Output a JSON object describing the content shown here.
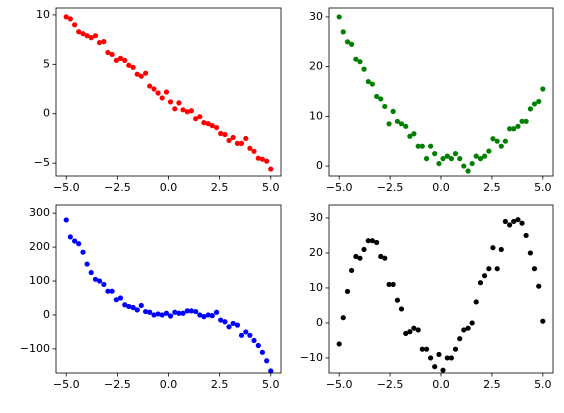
{
  "chart_data": [
    {
      "type": "scatter",
      "color": "#ff0000",
      "x": [
        -5.0,
        -4.8,
        -4.59,
        -4.39,
        -4.18,
        -3.98,
        -3.78,
        -3.57,
        -3.37,
        -3.16,
        -2.96,
        -2.76,
        -2.55,
        -2.35,
        -2.14,
        -1.94,
        -1.73,
        -1.53,
        -1.33,
        -1.12,
        -0.92,
        -0.71,
        -0.51,
        -0.31,
        -0.1,
        0.1,
        0.31,
        0.51,
        0.71,
        0.92,
        1.12,
        1.33,
        1.53,
        1.73,
        1.94,
        2.14,
        2.35,
        2.55,
        2.76,
        2.96,
        3.16,
        3.37,
        3.57,
        3.78,
        3.98,
        4.18,
        4.39,
        4.59,
        4.8,
        5.0
      ],
      "values": [
        9.8,
        9.6,
        9.0,
        8.3,
        8.1,
        7.9,
        7.7,
        7.9,
        7.2,
        7.3,
        6.2,
        6.0,
        5.4,
        5.6,
        5.4,
        4.9,
        4.7,
        4.0,
        3.8,
        4.1,
        2.8,
        2.5,
        2.1,
        1.6,
        2.2,
        1.2,
        0.5,
        1.1,
        0.4,
        0.2,
        0.3,
        -0.5,
        -0.3,
        -0.9,
        -1.0,
        -1.2,
        -1.4,
        -2.0,
        -2.1,
        -2.7,
        -2.4,
        -3.0,
        -3.0,
        -2.5,
        -3.5,
        -3.8,
        -4.5,
        -4.6,
        -4.8,
        -5.6
      ],
      "xlim": [
        -5.5,
        5.5
      ],
      "ylim": [
        -6.3,
        10.7
      ],
      "xticks": [
        {
          "value": -5,
          "label": "−5.0"
        },
        {
          "value": -2.5,
          "label": "−2.5"
        },
        {
          "value": 0,
          "label": "0.0"
        },
        {
          "value": 2.5,
          "label": "2.5"
        },
        {
          "value": 5,
          "label": "5.0"
        }
      ],
      "yticks": [
        {
          "value": -5,
          "label": "−5"
        },
        0,
        5,
        10
      ]
    },
    {
      "type": "scatter",
      "color": "#008000",
      "x": [
        -5.0,
        -4.8,
        -4.59,
        -4.39,
        -4.18,
        -3.98,
        -3.78,
        -3.57,
        -3.37,
        -3.16,
        -2.96,
        -2.76,
        -2.55,
        -2.35,
        -2.14,
        -1.94,
        -1.73,
        -1.53,
        -1.33,
        -1.12,
        -0.92,
        -0.71,
        -0.51,
        -0.31,
        -0.1,
        0.1,
        0.31,
        0.51,
        0.71,
        0.92,
        1.12,
        1.33,
        1.53,
        1.73,
        1.94,
        2.14,
        2.35,
        2.55,
        2.76,
        2.96,
        3.16,
        3.37,
        3.57,
        3.78,
        3.98,
        4.18,
        4.39,
        4.59,
        4.8,
        5.0
      ],
      "values": [
        30,
        27,
        25,
        24.5,
        21.5,
        21,
        19.5,
        17,
        16.5,
        14,
        13.5,
        12,
        8.5,
        11,
        9,
        8.5,
        8,
        6,
        6.5,
        4,
        4,
        1.5,
        4,
        2.5,
        0.5,
        1.5,
        2,
        1.5,
        2.5,
        1.5,
        0,
        -1,
        0.5,
        2,
        1.5,
        2,
        3,
        5.5,
        5,
        4,
        5,
        7.5,
        7.5,
        8,
        9,
        9,
        11.5,
        12.5,
        13,
        15.5
      ],
      "xlim": [
        -5.5,
        5.5
      ],
      "ylim": [
        -2,
        31.8
      ],
      "xticks": [
        {
          "value": -5,
          "label": "−5.0"
        },
        {
          "value": -2.5,
          "label": "−2.5"
        },
        {
          "value": 0,
          "label": "0.0"
        },
        {
          "value": 2.5,
          "label": "2.5"
        },
        {
          "value": 5,
          "label": "5.0"
        }
      ],
      "yticks": [
        0,
        10,
        20,
        30
      ]
    },
    {
      "type": "scatter",
      "color": "#0000ff",
      "x": [
        -5.0,
        -4.8,
        -4.59,
        -4.39,
        -4.18,
        -3.98,
        -3.78,
        -3.57,
        -3.37,
        -3.16,
        -2.96,
        -2.76,
        -2.55,
        -2.35,
        -2.14,
        -1.94,
        -1.73,
        -1.53,
        -1.33,
        -1.12,
        -0.92,
        -0.71,
        -0.51,
        -0.31,
        -0.1,
        0.1,
        0.31,
        0.51,
        0.71,
        0.92,
        1.12,
        1.33,
        1.53,
        1.73,
        1.94,
        2.14,
        2.35,
        2.55,
        2.76,
        2.96,
        3.16,
        3.37,
        3.57,
        3.78,
        3.98,
        4.18,
        4.39,
        4.59,
        4.8,
        5.0
      ],
      "values": [
        280,
        230,
        218,
        210,
        185,
        150,
        125,
        105,
        100,
        90,
        70,
        70,
        45,
        50,
        30,
        25,
        22,
        15,
        28,
        10,
        8,
        0,
        3,
        0,
        5,
        -3,
        8,
        5,
        5,
        12,
        12,
        10,
        0,
        -5,
        0,
        -2,
        8,
        -15,
        -20,
        -35,
        -25,
        -30,
        -60,
        -50,
        -60,
        -75,
        -90,
        -110,
        -135,
        -165
      ],
      "xlim": [
        -5.5,
        5.5
      ],
      "ylim": [
        -171,
        324
      ],
      "xticks": [
        {
          "value": -5,
          "label": "−5.0"
        },
        {
          "value": -2.5,
          "label": "−2.5"
        },
        {
          "value": 0,
          "label": "0.0"
        },
        {
          "value": 2.5,
          "label": "2.5"
        },
        {
          "value": 5,
          "label": "5.0"
        }
      ],
      "yticks": [
        {
          "value": -100,
          "label": "−100"
        },
        0,
        100,
        200,
        300
      ]
    },
    {
      "type": "scatter",
      "color": "#000000",
      "x": [
        -5.0,
        -4.8,
        -4.59,
        -4.39,
        -4.18,
        -3.98,
        -3.78,
        -3.57,
        -3.37,
        -3.16,
        -2.96,
        -2.76,
        -2.55,
        -2.35,
        -2.14,
        -1.94,
        -1.73,
        -1.53,
        -1.33,
        -1.12,
        -0.92,
        -0.71,
        -0.51,
        -0.31,
        -0.1,
        0.1,
        0.31,
        0.51,
        0.71,
        0.92,
        1.12,
        1.33,
        1.53,
        1.73,
        1.94,
        2.14,
        2.35,
        2.55,
        2.76,
        2.96,
        3.16,
        3.37,
        3.57,
        3.78,
        3.98,
        4.18,
        4.39,
        4.59,
        4.8,
        5.0
      ],
      "values": [
        -6,
        1.5,
        9,
        15,
        19,
        18.5,
        21,
        23.5,
        23.5,
        23,
        19,
        18.5,
        11,
        11,
        6.5,
        4,
        -3,
        -2.5,
        -1.5,
        -2,
        -7.5,
        -7.5,
        -10,
        -12.5,
        -9,
        -13.5,
        -10,
        -10,
        -7.5,
        -4.5,
        -2,
        -1.5,
        0,
        6,
        11.5,
        13.5,
        15.5,
        21.5,
        15.5,
        21,
        29,
        28,
        29,
        29.5,
        28.5,
        25,
        20,
        15.5,
        10.5,
        0.5
      ],
      "xlim": [
        -5.5,
        5.5
      ],
      "ylim": [
        -14.3,
        33.7
      ],
      "xticks": [
        {
          "value": -5,
          "label": "−5.0"
        },
        {
          "value": -2.5,
          "label": "−2.5"
        },
        {
          "value": 0,
          "label": "0.0"
        },
        {
          "value": 2.5,
          "label": "2.5"
        },
        {
          "value": 5,
          "label": "5.0"
        }
      ],
      "yticks": [
        {
          "value": -10,
          "label": "−10"
        },
        0,
        10,
        20,
        30
      ]
    }
  ]
}
